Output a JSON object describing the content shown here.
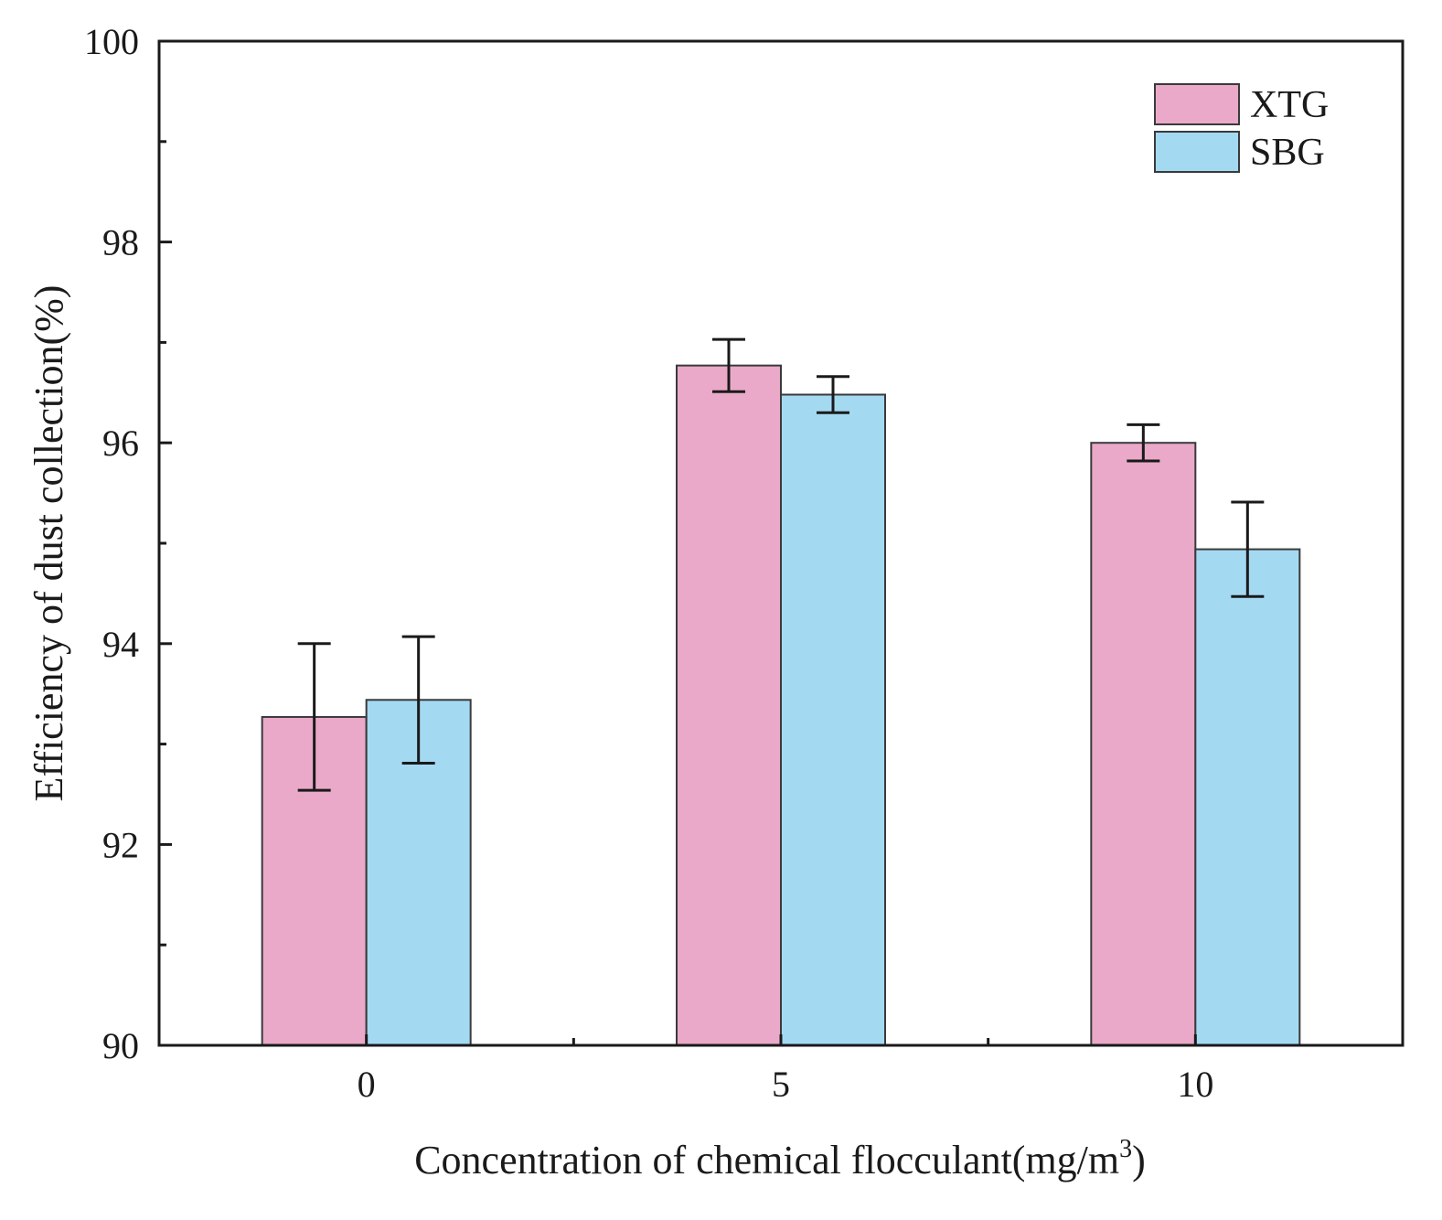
{
  "chart_data": {
    "type": "bar",
    "title": "",
    "xlabel": "Concentration of chemical flocculant(mg/m",
    "xlabel_sup": "3",
    "xlabel_end": ")",
    "ylabel": "Efficiency of dust collection(%)",
    "categories": [
      "0",
      "5",
      "10"
    ],
    "ylim": [
      90,
      100
    ],
    "yticks": [
      90,
      92,
      94,
      96,
      98,
      100
    ],
    "y_minor_ticks": [
      91,
      93,
      95,
      97,
      99
    ],
    "grid": false,
    "legend_position": "top-right",
    "series": [
      {
        "name": "XTG",
        "color": "#EAA9C8",
        "values": [
          93.27,
          96.77,
          96.0
        ],
        "errors": [
          0.73,
          0.26,
          0.18
        ]
      },
      {
        "name": "SBG",
        "color": "#A4D9F2",
        "values": [
          93.44,
          96.48,
          94.94
        ],
        "errors": [
          0.63,
          0.18,
          0.47
        ]
      }
    ]
  }
}
